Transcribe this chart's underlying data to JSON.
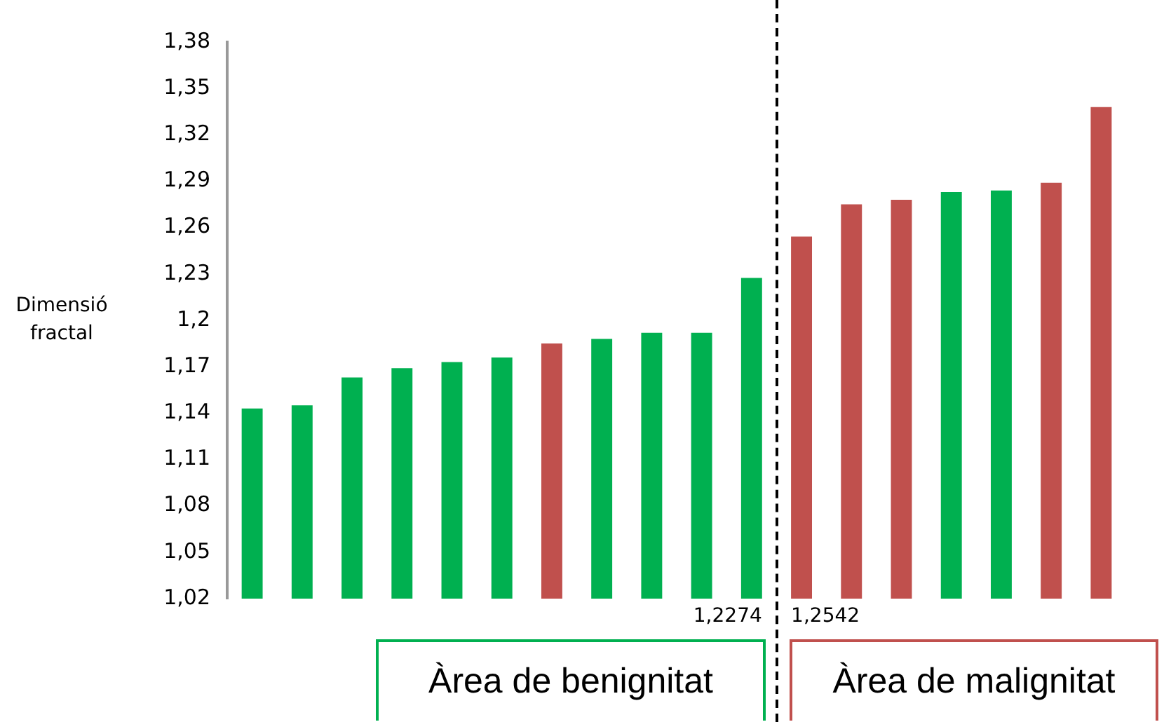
{
  "chart_data": {
    "type": "bar",
    "ylabel": "Dimensió fractal",
    "categories": [
      null,
      null,
      null,
      null,
      null,
      null,
      null,
      null,
      null,
      null,
      null,
      null,
      null,
      null,
      null,
      null,
      null,
      null
    ],
    "values": [
      1.143,
      1.145,
      1.163,
      1.169,
      1.173,
      1.176,
      1.185,
      1.188,
      1.192,
      1.192,
      1.2274,
      1.2542,
      1.275,
      1.278,
      1.283,
      1.284,
      1.289,
      1.338
    ],
    "colors": [
      "#00b050",
      "#00b050",
      "#00b050",
      "#00b050",
      "#00b050",
      "#00b050",
      "#c0504d",
      "#00b050",
      "#00b050",
      "#00b050",
      "#00b050",
      "#c0504d",
      "#c0504d",
      "#c0504d",
      "#00b050",
      "#00b050",
      "#c0504d",
      "#c0504d"
    ],
    "value_labels": [
      null,
      null,
      null,
      null,
      null,
      null,
      null,
      null,
      null,
      null,
      "1,2274",
      "1,2542",
      null,
      null,
      null,
      null,
      null,
      null
    ],
    "ylim": [
      1.02,
      1.38
    ],
    "yticks": [
      {
        "value": 1.02,
        "label": "1,02"
      },
      {
        "value": 1.05,
        "label": "1,05"
      },
      {
        "value": 1.08,
        "label": "1,08"
      },
      {
        "value": 1.11,
        "label": "1,11"
      },
      {
        "value": 1.14,
        "label": "1,14"
      },
      {
        "value": 1.17,
        "label": "1,17"
      },
      {
        "value": 1.2,
        "label": "1,2"
      },
      {
        "value": 1.23,
        "label": "1,23"
      },
      {
        "value": 1.26,
        "label": "1,26"
      },
      {
        "value": 1.29,
        "label": "1,29"
      },
      {
        "value": 1.32,
        "label": "1,32"
      },
      {
        "value": 1.35,
        "label": "1,35"
      },
      {
        "value": 1.38,
        "label": "1,38"
      }
    ],
    "annotations": [
      "Àrea de benignitat",
      "Àrea de malignitat"
    ],
    "grid": false,
    "legend": false
  }
}
